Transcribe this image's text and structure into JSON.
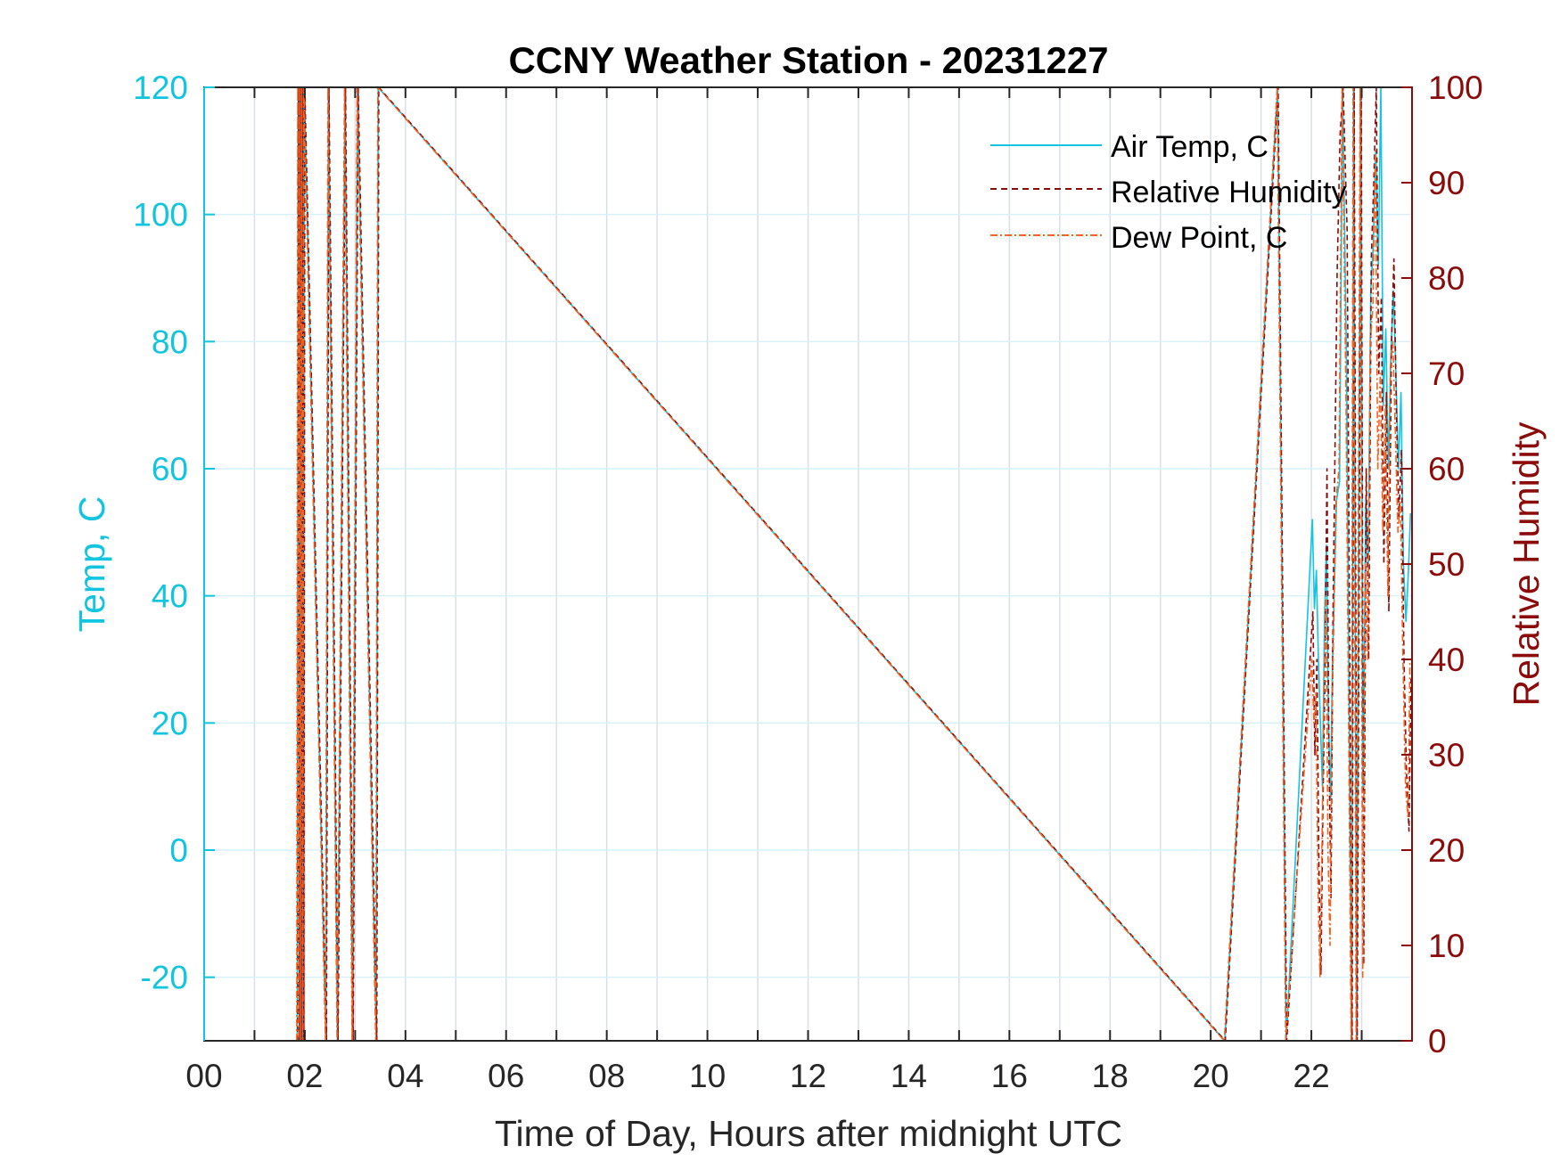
{
  "chart_data": {
    "type": "line",
    "title": "CCNY Weather Station - 20231227",
    "xlabel": "Time of Day, Hours after midnight UTC",
    "ylabel_left": "Temp, C",
    "ylabel_right": "Relative Humidity",
    "xlim": [
      0,
      24
    ],
    "ylim_left": [
      -30,
      120
    ],
    "ylim_right": [
      0,
      100
    ],
    "x_ticks": [
      0,
      2,
      4,
      6,
      8,
      10,
      12,
      14,
      16,
      18,
      20,
      22
    ],
    "x_tick_labels": [
      "00",
      "02",
      "04",
      "06",
      "08",
      "10",
      "12",
      "14",
      "16",
      "18",
      "20",
      "22"
    ],
    "y_left_ticks": [
      -20,
      0,
      20,
      40,
      60,
      80,
      100,
      120
    ],
    "y_left_tick_labels": [
      "-20",
      "0",
      "20",
      "40",
      "60",
      "80",
      "100",
      "120"
    ],
    "y_right_ticks": [
      0,
      10,
      20,
      30,
      40,
      50,
      60,
      70,
      80,
      90,
      100
    ],
    "y_right_tick_labels": [
      "0",
      "10",
      "20",
      "30",
      "40",
      "50",
      "60",
      "70",
      "80",
      "90",
      "100"
    ],
    "grid": true,
    "legend_position": "top-right",
    "colors": {
      "air_temp": "#11c4df",
      "relative_humidity": "#8b0a0a",
      "dew_point": "#f26522",
      "grid": "#d8dfe6",
      "axis_left": "#11c4df",
      "axis_right": "#8b0a0a",
      "frame": "#262626"
    },
    "series": [
      {
        "name": "Air Temp, C",
        "axis": "left",
        "style": "solid",
        "x": [
          1.85,
          1.87,
          1.89,
          1.91,
          1.93,
          1.95,
          1.97,
          1.99,
          2.42,
          2.47,
          2.65,
          2.8,
          2.95,
          3.05,
          3.42,
          3.46,
          20.28,
          21.33,
          21.5,
          22.02,
          22.06,
          22.1,
          22.14,
          22.18,
          22.22,
          22.26,
          22.3,
          22.34,
          22.38,
          22.42,
          22.5,
          22.56,
          22.62,
          22.7,
          22.8,
          22.84,
          22.9,
          22.98,
          23.03,
          23.08,
          23.13,
          23.18,
          23.23,
          23.28,
          23.33,
          23.38,
          23.43,
          23.48,
          23.53,
          23.58,
          23.63,
          23.68,
          23.73,
          23.78,
          23.83,
          23.88,
          23.93,
          23.97
        ],
        "y": [
          -30,
          120,
          -30,
          120,
          -30,
          120,
          -30,
          120,
          -30,
          120,
          -30,
          120,
          -30,
          120,
          -30,
          120,
          -30,
          120,
          -30,
          52,
          38,
          44,
          30,
          20,
          10,
          36,
          48,
          20,
          8,
          30,
          55,
          58,
          120,
          76,
          -30,
          120,
          -30,
          120,
          10,
          55,
          45,
          88,
          95,
          110,
          92,
          120,
          70,
          82,
          60,
          78,
          88,
          75,
          60,
          72,
          45,
          36,
          44,
          53
        ]
      },
      {
        "name": "Relative Humidity",
        "axis": "right",
        "style": "dashed",
        "x": [
          1.86,
          1.88,
          1.9,
          1.92,
          1.94,
          1.96,
          1.98,
          2.0,
          2.43,
          2.48,
          2.66,
          2.81,
          2.96,
          3.06,
          3.43,
          3.47,
          20.29,
          21.34,
          21.51,
          22.03,
          22.07,
          22.11,
          22.15,
          22.19,
          22.23,
          22.27,
          22.31,
          22.35,
          22.39,
          22.43,
          22.51,
          22.57,
          22.63,
          22.71,
          22.81,
          22.85,
          22.91,
          22.99,
          23.04,
          23.09,
          23.14,
          23.19,
          23.24,
          23.29,
          23.34,
          23.39,
          23.44,
          23.49,
          23.54,
          23.59,
          23.64,
          23.69,
          23.74,
          23.79,
          23.84,
          23.89,
          23.94,
          23.98
        ],
        "y": [
          0,
          100,
          0,
          100,
          0,
          100,
          0,
          100,
          0,
          100,
          0,
          100,
          0,
          100,
          0,
          100,
          0,
          100,
          0,
          45,
          30,
          40,
          18,
          7,
          25,
          38,
          60,
          30,
          15,
          45,
          80,
          95,
          100,
          85,
          0,
          100,
          0,
          100,
          8,
          60,
          40,
          82,
          90,
          100,
          70,
          78,
          50,
          68,
          45,
          73,
          82,
          66,
          55,
          62,
          40,
          28,
          22,
          38
        ]
      },
      {
        "name": "Dew Point, C",
        "axis": "left",
        "style": "dash-dot",
        "x": [
          1.84,
          1.86,
          1.88,
          1.9,
          1.92,
          1.94,
          1.96,
          1.98,
          2.41,
          2.46,
          2.64,
          2.79,
          2.94,
          3.04,
          3.41,
          3.45,
          20.27,
          21.32,
          21.49,
          22.01,
          22.05,
          22.09,
          22.13,
          22.17,
          22.21,
          22.25,
          22.29,
          22.33,
          22.37,
          22.41,
          22.49,
          22.55,
          22.61,
          22.69,
          22.79,
          22.83,
          22.89,
          22.97,
          23.02,
          23.07,
          23.12,
          23.17,
          23.22,
          23.27,
          23.32,
          23.37,
          23.42,
          23.47,
          23.52,
          23.57,
          23.62,
          23.67,
          23.72,
          23.77,
          23.82,
          23.87,
          23.92,
          23.96
        ],
        "y": [
          -30,
          120,
          -30,
          120,
          -30,
          120,
          -30,
          120,
          -30,
          120,
          -30,
          120,
          -30,
          120,
          -30,
          120,
          -30,
          120,
          -30,
          30,
          20,
          25,
          -5,
          -20,
          0,
          25,
          40,
          0,
          -15,
          20,
          55,
          60,
          120,
          70,
          -30,
          120,
          -30,
          120,
          -20,
          45,
          30,
          80,
          85,
          110,
          60,
          75,
          50,
          70,
          40,
          76,
          80,
          65,
          50,
          55,
          30,
          10,
          5,
          30
        ]
      }
    ]
  }
}
